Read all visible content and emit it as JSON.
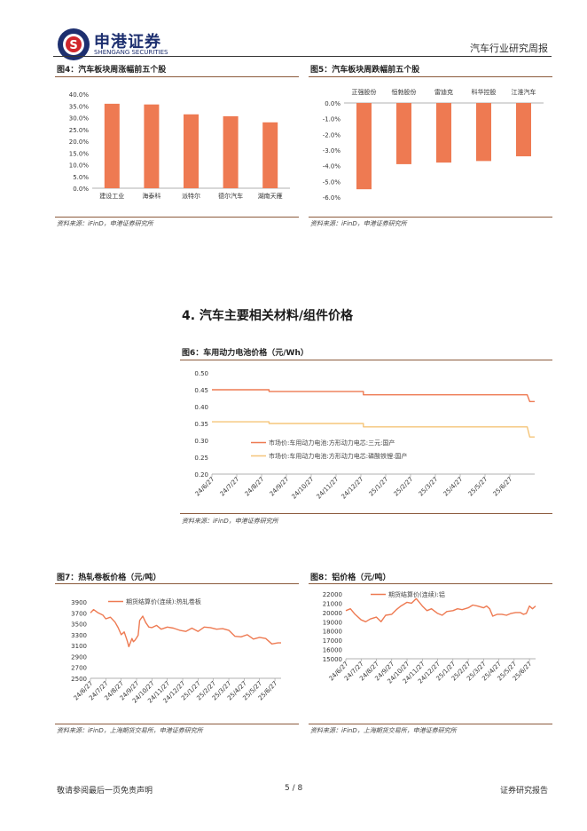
{
  "header": {
    "company_cn": "申港证券",
    "company_en": "SHENGANG SECURITIES",
    "report_type": "汽车行业研究周报"
  },
  "figure4": {
    "title": "图4：汽车板块周涨幅前五个股",
    "source": "资料来源：iFinD，申港证券研究所"
  },
  "figure5": {
    "title": "图5：汽车板块周跌幅前五个股",
    "source": "资料来源：iFinD，申港证券研究所"
  },
  "section": {
    "title": "4. 汽车主要相关材料/组件价格"
  },
  "figure6": {
    "title": "图6：车用动力电池价格（元/Wh）",
    "source": "资料来源：iFinD，申港证券研究所"
  },
  "figure7": {
    "title": "图7：热轧卷板价格（元/吨）",
    "source": "资料来源：iFinD，上海期货交易所，申港证券研究所"
  },
  "figure8": {
    "title": "图8：铝价格（元/吨）",
    "source": "资料来源：iFinD，上海期货交易所，申港证券研究所"
  },
  "footer": {
    "disclaimer": "敬请参阅最后一页免责声明",
    "page": "5 / 8",
    "doc_type": "证券研究报告"
  },
  "colors": {
    "orange": "#ee7a52",
    "light_orange": "#f5c57a",
    "brand_blue": "#1d2f6f",
    "brand_red": "#d0262c"
  },
  "chart_data": [
    {
      "id": "fig4",
      "type": "bar",
      "title": "汽车板块周涨幅前五个股",
      "categories": [
        "建设工业",
        "海泰科",
        "派特尔",
        "德尔汽车",
        "湖南天雁"
      ],
      "values": [
        35.9,
        35.6,
        31.4,
        30.6,
        28.0
      ],
      "unit": "%",
      "ylim": [
        0,
        40
      ],
      "yticks": [
        0,
        5,
        10,
        15,
        20,
        25,
        30,
        35,
        40
      ],
      "ytick_labels": [
        "0.0%",
        "5.0%",
        "10.0%",
        "15.0%",
        "20.0%",
        "25.0%",
        "30.0%",
        "35.0%",
        "40.0%"
      ]
    },
    {
      "id": "fig5",
      "type": "bar",
      "title": "汽车板块周跌幅前五个股",
      "categories": [
        "正强股份",
        "恒勃股份",
        "雷迪克",
        "科华控股",
        "江淮汽车"
      ],
      "values": [
        -5.5,
        -3.9,
        -3.8,
        -3.7,
        -3.4
      ],
      "unit": "%",
      "ylim": [
        -6,
        0
      ],
      "yticks": [
        0,
        -1,
        -2,
        -3,
        -4,
        -5,
        -6
      ],
      "ytick_labels": [
        "0.0%",
        "-1.0%",
        "-2.0%",
        "-3.0%",
        "-4.0%",
        "-5.0%",
        "-6.0%"
      ]
    },
    {
      "id": "fig6",
      "type": "line",
      "title": "车用动力电池价格（元/Wh）",
      "ylim": [
        0.2,
        0.5
      ],
      "yticks": [
        0.2,
        0.25,
        0.3,
        0.35,
        0.4,
        0.45,
        0.5
      ],
      "ytick_labels": [
        "0.20",
        "0.25",
        "0.30",
        "0.35",
        "0.40",
        "0.45",
        "0.50"
      ],
      "xlim": [
        0,
        13
      ],
      "xticks": [
        0,
        1,
        2,
        3,
        4,
        5,
        6,
        7,
        8,
        9,
        10,
        11,
        12
      ],
      "xtick_labels": [
        "24/6/27",
        "24/7/27",
        "24/8/27",
        "24/9/27",
        "24/10/27",
        "24/11/27",
        "24/12/27",
        "25/1/27",
        "25/2/27",
        "25/3/27",
        "25/4/27",
        "25/5/27",
        "25/6/27"
      ],
      "series": [
        {
          "name": "市场价:车用动力电池:方形动力电芯:三元:国产",
          "color": "#ee7a52",
          "x": [
            0,
            2.3,
            2.3,
            6.1,
            6.1,
            12.7,
            12.8,
            13.0
          ],
          "y": [
            0.45,
            0.45,
            0.445,
            0.445,
            0.435,
            0.435,
            0.415,
            0.415
          ]
        },
        {
          "name": "市场价:车用动力电池:方形动力电芯:磷酸铁锂:国产",
          "color": "#f5c57a",
          "x": [
            0,
            2.3,
            2.3,
            6.1,
            6.1,
            12.7,
            12.8,
            13.0
          ],
          "y": [
            0.355,
            0.355,
            0.35,
            0.35,
            0.34,
            0.34,
            0.31,
            0.31
          ]
        }
      ]
    },
    {
      "id": "fig7",
      "type": "line",
      "title": "热轧卷板价格（元/吨）",
      "ylim": [
        2500,
        3900
      ],
      "yticks": [
        2500,
        2700,
        2900,
        3100,
        3300,
        3500,
        3700,
        3900
      ],
      "ytick_labels": [
        "2500",
        "2700",
        "2900",
        "3100",
        "3300",
        "3500",
        "3700",
        "3900"
      ],
      "xlim": [
        0,
        12.4
      ],
      "xticks": [
        0,
        1,
        2,
        3,
        4,
        5,
        6,
        7,
        8,
        9,
        10,
        11,
        12
      ],
      "xtick_labels": [
        "24/6/27",
        "24/7/27",
        "24/8/27",
        "24/9/27",
        "24/10/27",
        "24/11/27",
        "24/12/27",
        "25/1/27",
        "25/2/27",
        "25/3/27",
        "25/4/27",
        "25/5/27",
        "25/6/27"
      ],
      "series": [
        {
          "name": "期货结算价(连续):热轧卷板",
          "color": "#ee7a52",
          "x": [
            0,
            0.2,
            0.5,
            0.8,
            1.0,
            1.3,
            1.6,
            1.8,
            2.0,
            2.2,
            2.4,
            2.5,
            2.7,
            2.8,
            2.9,
            3.0,
            3.1,
            3.2,
            3.4,
            3.6,
            3.8,
            4.0,
            4.3,
            4.6,
            5.0,
            5.4,
            5.8,
            6.2,
            6.6,
            7.0,
            7.4,
            7.8,
            8.2,
            8.6,
            9.0,
            9.4,
            9.8,
            10.2,
            10.6,
            11.0,
            11.4,
            11.8,
            12.2,
            12.4
          ],
          "y": [
            3700,
            3760,
            3700,
            3660,
            3590,
            3620,
            3530,
            3430,
            3300,
            3350,
            3180,
            3080,
            3230,
            3170,
            3200,
            3240,
            3290,
            3560,
            3640,
            3520,
            3440,
            3430,
            3470,
            3400,
            3440,
            3420,
            3380,
            3360,
            3420,
            3360,
            3440,
            3430,
            3400,
            3410,
            3380,
            3270,
            3260,
            3300,
            3220,
            3250,
            3230,
            3130,
            3150,
            3150
          ]
        }
      ]
    },
    {
      "id": "fig8",
      "type": "line",
      "title": "铝价格（元/吨）",
      "ylim": [
        15000,
        22000
      ],
      "yticks": [
        15000,
        16000,
        17000,
        18000,
        19000,
        20000,
        21000,
        22000
      ],
      "ytick_labels": [
        "15000",
        "16000",
        "17000",
        "18000",
        "19000",
        "20000",
        "21000",
        "22000"
      ],
      "xlim": [
        0,
        12.4
      ],
      "xticks": [
        0,
        1,
        2,
        3,
        4,
        5,
        6,
        7,
        8,
        9,
        10,
        11,
        12
      ],
      "xtick_labels": [
        "24/6/27",
        "24/7/27",
        "24/8/27",
        "24/9/27",
        "24/10/27",
        "24/11/27",
        "24/12/27",
        "25/1/27",
        "25/2/27",
        "25/3/27",
        "25/4/27",
        "25/5/27",
        "25/6/27"
      ],
      "series": [
        {
          "name": "期货结算价(连续):铝",
          "color": "#ee7a52",
          "x": [
            0,
            0.3,
            0.6,
            1.0,
            1.3,
            1.6,
            2.0,
            2.3,
            2.6,
            3.0,
            3.3,
            3.6,
            3.8,
            4.0,
            4.3,
            4.6,
            5.0,
            5.3,
            5.6,
            6.0,
            6.3,
            6.6,
            7.0,
            7.3,
            7.6,
            8.0,
            8.3,
            8.6,
            9.0,
            9.2,
            9.4,
            9.6,
            9.9,
            10.2,
            10.5,
            10.8,
            11.1,
            11.4,
            11.6,
            11.8,
            12.0,
            12.2,
            12.4
          ],
          "y": [
            20200,
            20400,
            19800,
            19200,
            19000,
            19300,
            19500,
            19000,
            19700,
            19800,
            20300,
            20700,
            20900,
            21100,
            21000,
            21500,
            20700,
            20200,
            20400,
            19900,
            19700,
            20100,
            20200,
            20400,
            20300,
            20500,
            20800,
            20700,
            20500,
            20700,
            20400,
            19600,
            19800,
            19800,
            19700,
            19900,
            20000,
            20000,
            19800,
            19900,
            20700,
            20400,
            20700
          ]
        }
      ]
    }
  ]
}
